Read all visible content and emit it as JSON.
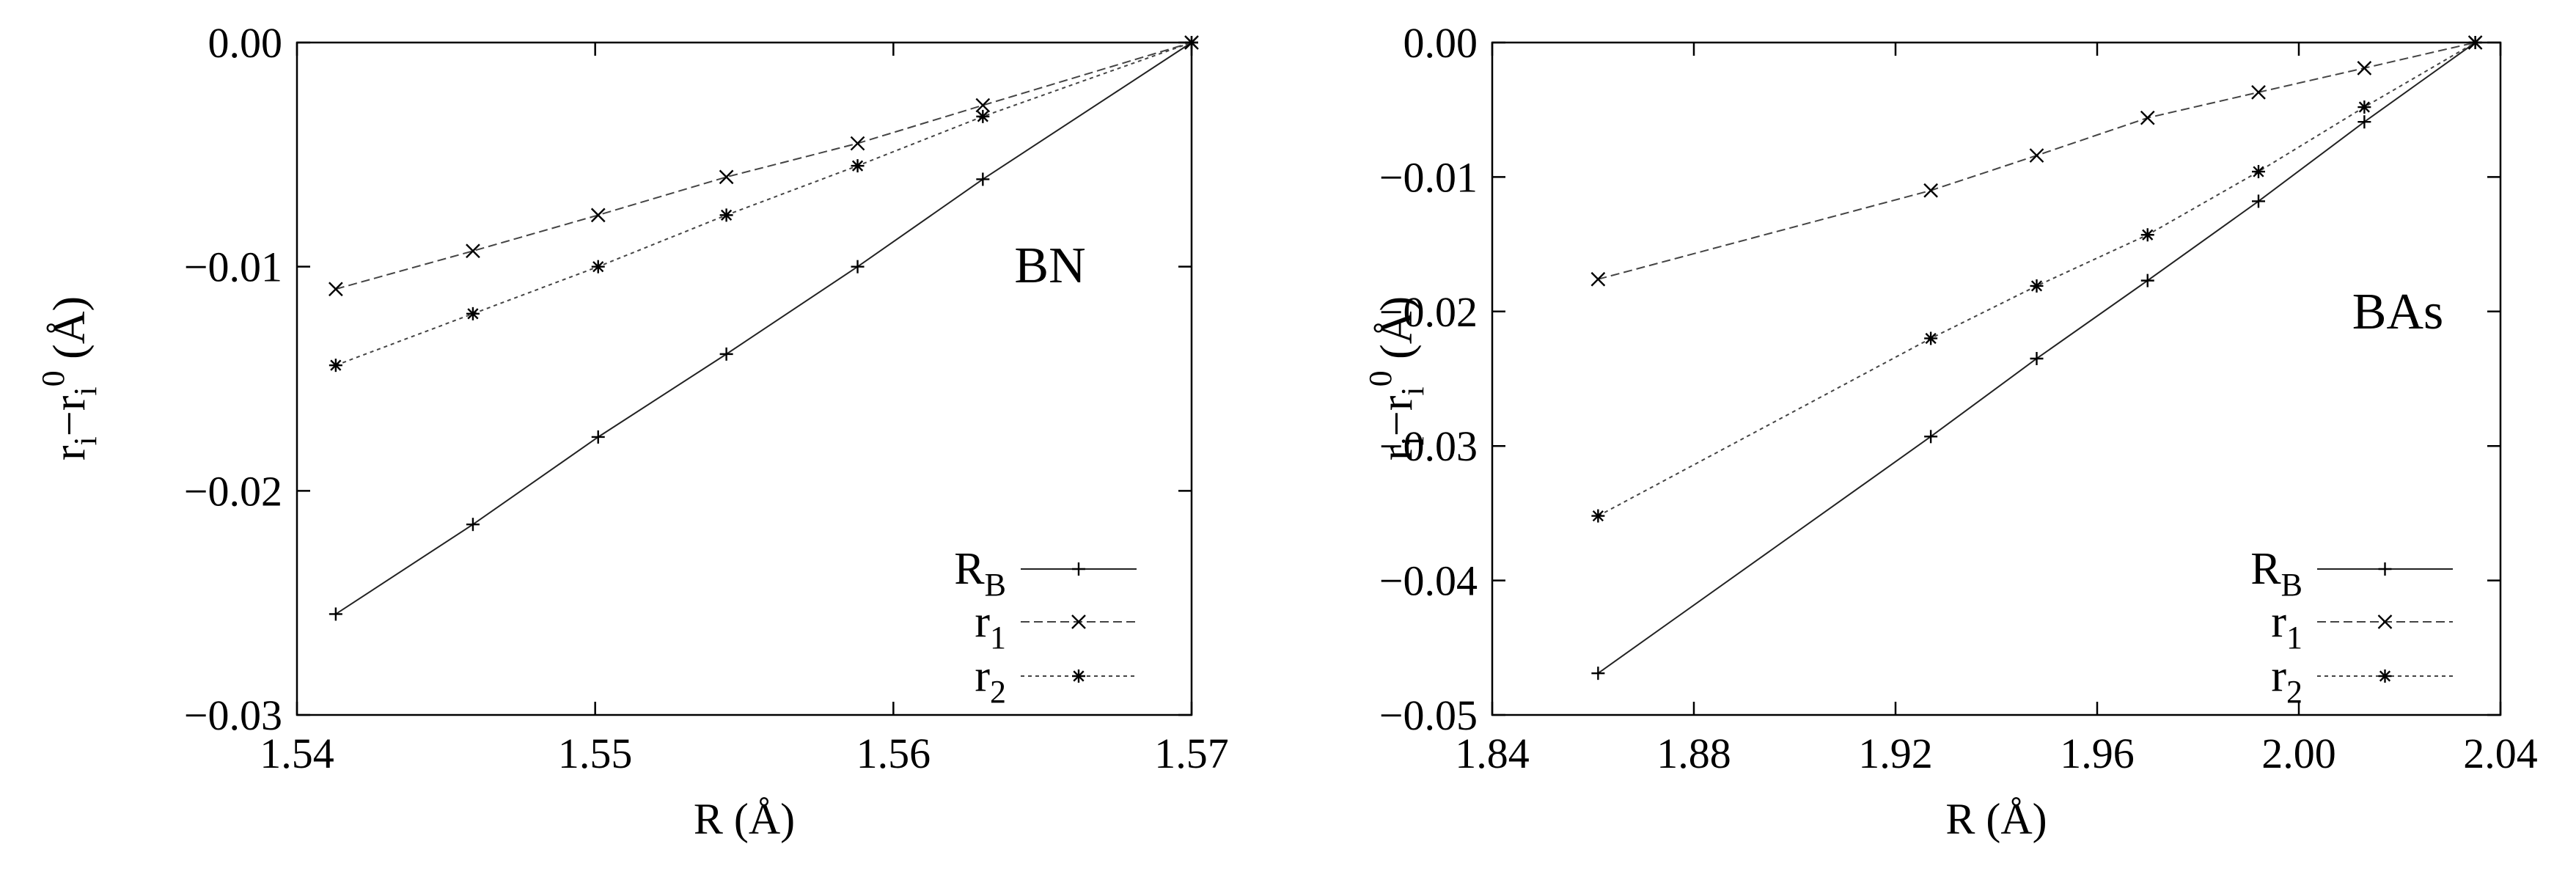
{
  "chart_data": [
    {
      "type": "line",
      "annotation": "BN",
      "xlabel": "R (Å)",
      "ylabel": {
        "base": "r",
        "sub1": "i",
        "minus": "−r",
        "sub2": "i",
        "sup": "0",
        "unit": " (Å)"
      },
      "xlim": [
        1.54,
        1.57
      ],
      "ylim": [
        -0.03,
        0.0
      ],
      "xticks": [
        1.54,
        1.55,
        1.56,
        1.57
      ],
      "xtick_labels": [
        "1.54",
        "1.55",
        "1.56",
        "1.57"
      ],
      "yticks": [
        0.0,
        -0.01,
        -0.02,
        -0.03
      ],
      "ytick_labels": [
        "0.00",
        "−0.01",
        "−0.02",
        "−0.03"
      ],
      "legend_position": "bottom-right",
      "series": [
        {
          "name": "R",
          "sub": "B",
          "marker": "plus",
          "dash": "solid",
          "x": [
            1.5413,
            1.5459,
            1.5501,
            1.5544,
            1.5588,
            1.563,
            1.57
          ],
          "y": [
            -0.0255,
            -0.0215,
            -0.0176,
            -0.0139,
            -0.01,
            -0.0061,
            0.0
          ]
        },
        {
          "name": "r",
          "sub": "1",
          "marker": "x",
          "dash": "dashed",
          "x": [
            1.5413,
            1.5459,
            1.5501,
            1.5544,
            1.5588,
            1.563,
            1.57
          ],
          "y": [
            -0.011,
            -0.0093,
            -0.0077,
            -0.006,
            -0.0045,
            -0.0028,
            0.0
          ]
        },
        {
          "name": "r",
          "sub": "2",
          "marker": "star",
          "dash": "dotted",
          "x": [
            1.5413,
            1.5459,
            1.5501,
            1.5544,
            1.5588,
            1.563,
            1.57
          ],
          "y": [
            -0.0144,
            -0.0121,
            -0.01,
            -0.0077,
            -0.0055,
            -0.0033,
            0.0
          ]
        }
      ]
    },
    {
      "type": "line",
      "annotation": "BAs",
      "xlabel": "R (Å)",
      "ylabel": {
        "base": "r",
        "sub1": "i",
        "minus": "−r",
        "sub2": "i",
        "sup": "0",
        "unit": " (Å)"
      },
      "xlim": [
        1.84,
        2.04
      ],
      "ylim": [
        -0.05,
        0.0
      ],
      "xticks": [
        1.84,
        1.88,
        1.92,
        1.96,
        2.0,
        2.04
      ],
      "xtick_labels": [
        "1.84",
        "1.88",
        "1.92",
        "1.96",
        "2.00",
        "2.04"
      ],
      "yticks": [
        0.0,
        -0.01,
        -0.02,
        -0.03,
        -0.04,
        -0.05
      ],
      "ytick_labels": [
        "0.00",
        "−0.01",
        "−0.02",
        "−0.03",
        "−0.04",
        "−0.05"
      ],
      "legend_position": "bottom-right",
      "series": [
        {
          "name": "R",
          "sub": "B",
          "marker": "plus",
          "dash": "solid",
          "x": [
            1.861,
            1.927,
            1.948,
            1.97,
            1.992,
            2.013,
            2.035
          ],
          "y": [
            -0.0469,
            -0.0293,
            -0.0235,
            -0.0177,
            -0.0118,
            -0.0059,
            0.0
          ]
        },
        {
          "name": "r",
          "sub": "1",
          "marker": "x",
          "dash": "dashed",
          "x": [
            1.861,
            1.927,
            1.948,
            1.97,
            1.992,
            2.013,
            2.035
          ],
          "y": [
            -0.0176,
            -0.011,
            -0.0084,
            -0.0056,
            -0.0037,
            -0.0019,
            0.0
          ]
        },
        {
          "name": "r",
          "sub": "2",
          "marker": "star",
          "dash": "dotted",
          "x": [
            1.861,
            1.927,
            1.948,
            1.97,
            1.992,
            2.013,
            2.035
          ],
          "y": [
            -0.0352,
            -0.022,
            -0.0181,
            -0.0143,
            -0.0096,
            -0.0048,
            0.0
          ]
        }
      ]
    }
  ]
}
